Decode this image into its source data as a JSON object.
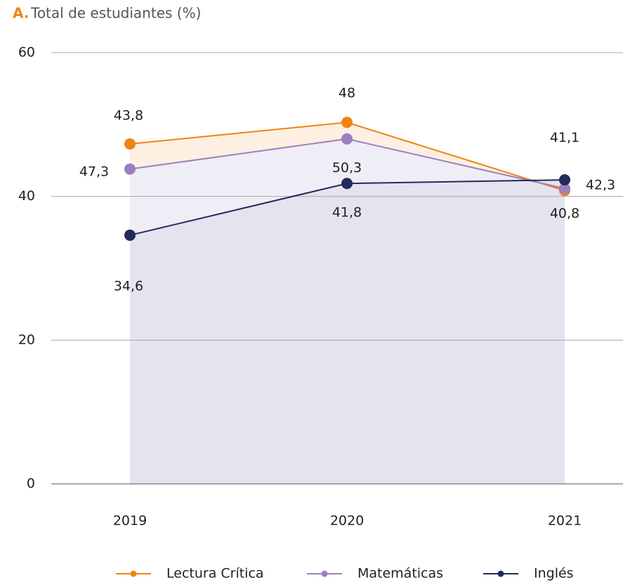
{
  "chart_data": {
    "type": "line",
    "panel_label": "A.",
    "title": "Total de estudiantes (%)",
    "categories": [
      "2019",
      "2020",
      "2021"
    ],
    "series": [
      {
        "name": "Lectura Crítica",
        "color": "#ee8511",
        "area_color": "#fdf0e2",
        "values": [
          47.3,
          50.3,
          40.8
        ],
        "value_labels": [
          "47,3",
          "50,3",
          "40,8"
        ]
      },
      {
        "name": "Matemáticas",
        "color": "#9b7fbf",
        "area_color": "#efedf6",
        "values": [
          43.8,
          48,
          41.1
        ],
        "value_labels": [
          "43,8",
          "48",
          "41,1"
        ]
      },
      {
        "name": "Inglés",
        "color": "#232a5c",
        "area_color": "#e4e3ee",
        "values": [
          34.6,
          41.8,
          42.3
        ],
        "value_labels": [
          "34,6",
          "41,8",
          "42,3"
        ]
      }
    ],
    "ylim": [
      0,
      60
    ],
    "yticks": [
      0,
      20,
      40,
      60
    ],
    "grid": true,
    "legend": "bottom"
  }
}
